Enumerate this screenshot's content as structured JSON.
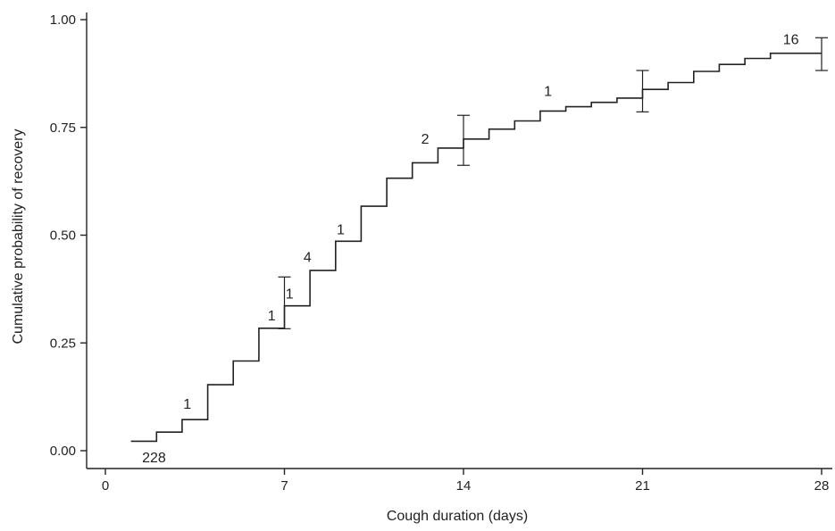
{
  "chart_data": {
    "type": "line",
    "title": "",
    "xlabel": "Cough duration (days)",
    "ylabel": "Cumulative probability of recovery",
    "xlim": [
      0,
      28
    ],
    "ylim": [
      0,
      1
    ],
    "xticks": [
      0,
      7,
      14,
      21,
      28
    ],
    "yticks": [
      0,
      0.25,
      0.5,
      0.75,
      1.0
    ],
    "xtick_labels": [
      "0",
      "7",
      "14",
      "21",
      "28"
    ],
    "ytick_labels": [
      "0.00",
      "0.25",
      "0.50",
      "0.75",
      "1.00"
    ],
    "grid": false,
    "step_x": [
      1,
      2,
      3,
      4,
      5,
      6,
      7,
      8,
      9,
      10,
      11,
      12,
      13,
      14,
      15,
      16,
      17,
      18,
      19,
      20,
      21,
      22,
      23,
      24,
      25,
      26,
      27,
      28
    ],
    "step_y": [
      0.022,
      0.043,
      0.072,
      0.153,
      0.208,
      0.284,
      0.336,
      0.418,
      0.486,
      0.567,
      0.632,
      0.668,
      0.702,
      0.723,
      0.746,
      0.765,
      0.788,
      0.798,
      0.808,
      0.818,
      0.838,
      0.854,
      0.88,
      0.896,
      0.91,
      0.922,
      0.922,
      0.922
    ],
    "error_bars": [
      {
        "x": 7,
        "low": 0.283,
        "high": 0.403
      },
      {
        "x": 14,
        "low": 0.662,
        "high": 0.778
      },
      {
        "x": 21,
        "low": 0.786,
        "high": 0.882
      },
      {
        "x": 28,
        "low": 0.882,
        "high": 0.958
      }
    ],
    "annotations": [
      {
        "text": "228",
        "x": 1.9,
        "y": -0.015
      },
      {
        "text": "1",
        "x": 3.2,
        "y": 0.11
      },
      {
        "text": "1",
        "x": 6.5,
        "y": 0.315
      },
      {
        "text": "1",
        "x": 7.2,
        "y": 0.365
      },
      {
        "text": "4",
        "x": 7.9,
        "y": 0.45
      },
      {
        "text": "1",
        "x": 9.2,
        "y": 0.515
      },
      {
        "text": "2",
        "x": 12.5,
        "y": 0.725
      },
      {
        "text": "1",
        "x": 17.3,
        "y": 0.835
      },
      {
        "text": "16",
        "x": 26.8,
        "y": 0.955
      }
    ]
  }
}
